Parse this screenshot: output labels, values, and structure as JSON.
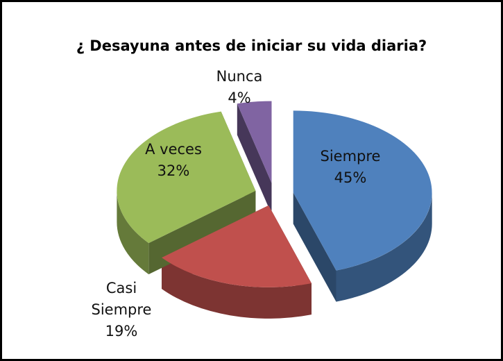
{
  "chart_data": {
    "type": "pie",
    "title": "¿ Desayuna antes de iniciar su vida diaria?",
    "categories": [
      "Siempre",
      "Casi Siempre",
      "A veces",
      "Nunca"
    ],
    "values": [
      45,
      19,
      32,
      4
    ],
    "value_labels": [
      "45%",
      "19%",
      "32%",
      "4%"
    ],
    "colors": [
      "#4f81bd",
      "#c0504d",
      "#9bbb59",
      "#8064a2"
    ]
  }
}
